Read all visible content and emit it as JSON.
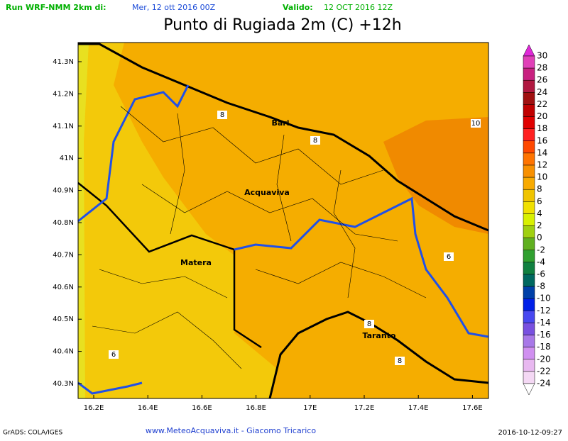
{
  "header": {
    "run": "Run WRF-NMM 2km di:",
    "run_date": "Mer, 12 ott 2016 00Z",
    "valid": "Valido:",
    "valid_date": "12 OCT 2016 12Z",
    "title": "Punto di Rugiada 2m (C) +12h"
  },
  "map": {
    "lat_labels": [
      "41.3N",
      "41.2N",
      "41.1N",
      "41N",
      "40.9N",
      "40.8N",
      "40.7N",
      "40.6N",
      "40.5N",
      "40.4N",
      "40.3N"
    ],
    "lon_labels": [
      "16.2E",
      "16.4E",
      "16.6E",
      "16.8E",
      "17E",
      "17.2E",
      "17.4E",
      "17.6E"
    ],
    "places": [
      "Bari",
      "Acquaviva",
      "Matera",
      "Taranto"
    ],
    "contour_labels": [
      "8",
      "8",
      "10",
      "6",
      "8",
      "8",
      "6"
    ]
  },
  "colorbar": {
    "levels": [
      30,
      28,
      26,
      24,
      22,
      20,
      18,
      16,
      14,
      12,
      10,
      8,
      6,
      4,
      2,
      0,
      -2,
      -4,
      -6,
      -8,
      -10,
      -12,
      -14,
      -16,
      -18,
      -20,
      -22,
      -24
    ],
    "colors": [
      "#e028d8",
      "#e040b8",
      "#c82080",
      "#b01840",
      "#a01010",
      "#c00000",
      "#e00000",
      "#ff2020",
      "#ff4800",
      "#ff7400",
      "#f89000",
      "#f8aa00",
      "#f0c400",
      "#f0e000",
      "#d8f000",
      "#a0d010",
      "#60b020",
      "#30a030",
      "#108040",
      "#006860",
      "#0040a8",
      "#0020e8",
      "#4848f0",
      "#7850e0",
      "#a878e8",
      "#d090f0",
      "#e8b8f0",
      "#f4d8f4",
      "#ffffff"
    ]
  },
  "footer": {
    "left": "GrADS: COLA/IGES",
    "center": "www.MeteoAcquaviva.it  -  Giacomo Tricarico",
    "right": "2016-10-12-09:27"
  }
}
